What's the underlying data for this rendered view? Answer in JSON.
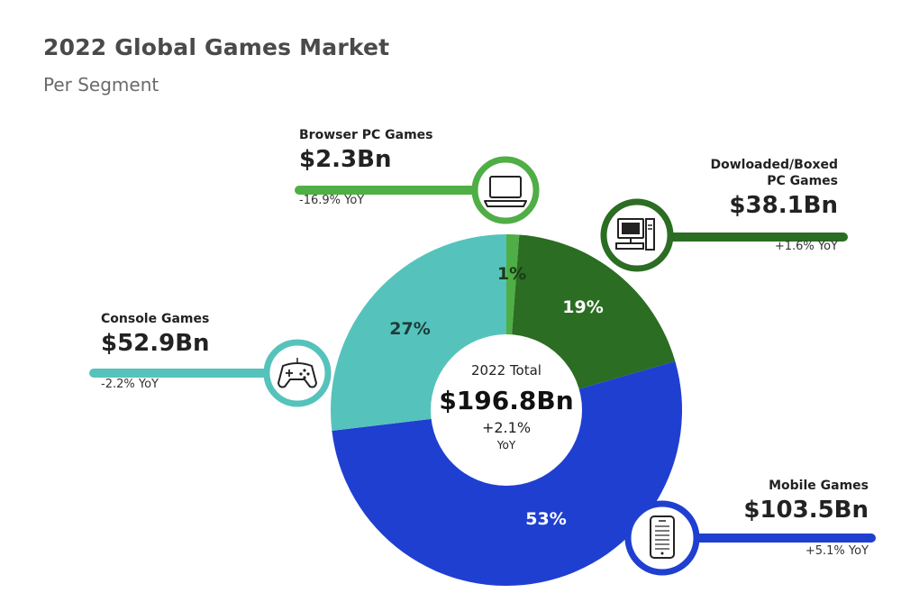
{
  "header": {
    "title": "2022 Global Games Market",
    "subtitle": "Per Segment"
  },
  "center": {
    "label": "2022 Total",
    "value": "$196.8Bn",
    "change": "+2.1%",
    "change_unit": "YoY"
  },
  "segments": [
    {
      "name": "Browser PC Games",
      "value": "$2.3Bn",
      "yoy": "-16.9% YoY",
      "pct_label": "1%",
      "color": "#4fae45",
      "icon": "laptop-icon"
    },
    {
      "name_line1": "Dowloaded/Boxed",
      "name_line2": "PC Games",
      "value": "$38.1Bn",
      "yoy": "+1.6% YoY",
      "pct_label": "19%",
      "color": "#2b6d22",
      "icon": "desktop-computer-icon"
    },
    {
      "name": "Mobile Games",
      "value": "$103.5Bn",
      "yoy": "+5.1% YoY",
      "pct_label": "53%",
      "color": "#1f3fd1",
      "icon": "mobile-phone-icon"
    },
    {
      "name": "Console Games",
      "value": "$52.9Bn",
      "yoy": "-2.2% YoY",
      "pct_label": "27%",
      "color": "#55c3bb",
      "icon": "gamepad-icon"
    }
  ],
  "chart_data": {
    "type": "pie",
    "title": "2022 Global Games Market",
    "subtitle": "Per Segment",
    "categories": [
      "Browser PC Games",
      "Dowloaded/Boxed PC Games",
      "Mobile Games",
      "Console Games"
    ],
    "values": [
      2.3,
      38.1,
      103.5,
      52.9
    ],
    "percent_labels": [
      "1%",
      "19%",
      "53%",
      "27%"
    ],
    "unit": "$Bn",
    "total": 196.8,
    "total_yoy_percent": 2.1,
    "yoy_percent": [
      -16.9,
      1.6,
      5.1,
      -2.2
    ],
    "colors": [
      "#4fae45",
      "#2b6d22",
      "#1f3fd1",
      "#55c3bb"
    ]
  }
}
